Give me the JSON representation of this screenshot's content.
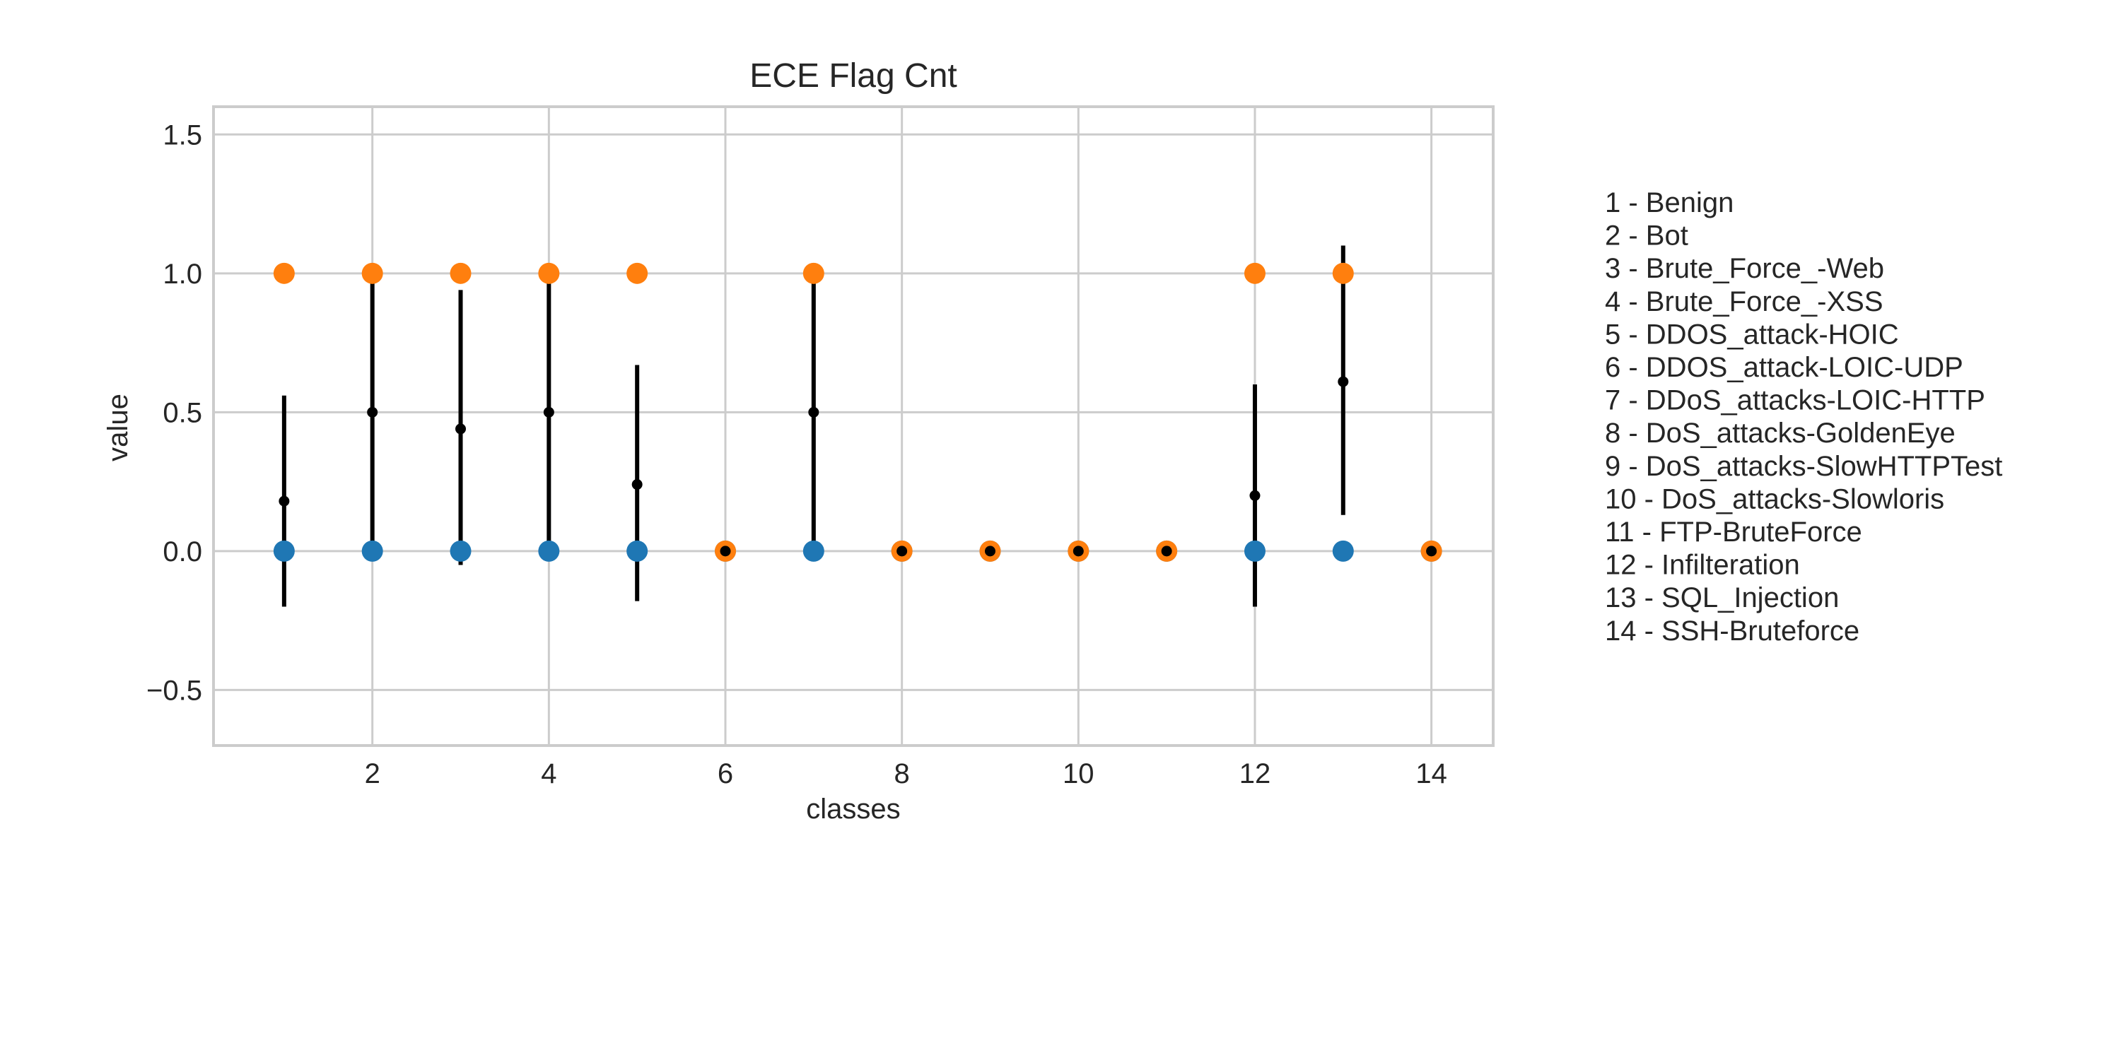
{
  "chart_data": {
    "type": "scatter",
    "title": "ECE Flag Cnt",
    "xlabel": "classes",
    "ylabel": "value",
    "xlim": [
      0.2,
      14.7
    ],
    "ylim": [
      -0.7,
      1.6
    ],
    "xticks": [
      2,
      4,
      6,
      8,
      10,
      12,
      14
    ],
    "yticks": [
      1.5,
      1.0,
      0.5,
      0.0,
      -0.5
    ],
    "ytick_labels": [
      "1.5",
      "1.0",
      "0.5",
      "0.0",
      "−0.5"
    ],
    "grid": true,
    "legend_placement": "right",
    "colors": {
      "min": "#1f77b4",
      "max": "#ff7f0e",
      "mean": "#000000"
    },
    "classes": [
      {
        "x": 1,
        "label": "1 - Benign",
        "min": 0,
        "max": 1,
        "mean": 0.18,
        "err_low": -0.2,
        "err_high": 0.56
      },
      {
        "x": 2,
        "label": "2 - Bot",
        "min": 0,
        "max": 1,
        "mean": 0.5,
        "err_low": 0.0,
        "err_high": 1.0
      },
      {
        "x": 3,
        "label": "3 - Brute_Force_-Web",
        "min": 0,
        "max": 1,
        "mean": 0.44,
        "err_low": -0.05,
        "err_high": 0.94
      },
      {
        "x": 4,
        "label": "4 - Brute_Force_-XSS",
        "min": 0,
        "max": 1,
        "mean": 0.5,
        "err_low": 0.0,
        "err_high": 0.99
      },
      {
        "x": 5,
        "label": "5 - DDOS_attack-HOIC",
        "min": 0,
        "max": 1,
        "mean": 0.24,
        "err_low": -0.18,
        "err_high": 0.67
      },
      {
        "x": 6,
        "label": "6 - DDOS_attack-LOIC-UDP",
        "min": 0,
        "max": 0,
        "mean": 0.0,
        "err_low": 0.0,
        "err_high": 0.0
      },
      {
        "x": 7,
        "label": "7 - DDoS_attacks-LOIC-HTTP",
        "min": 0,
        "max": 1,
        "mean": 0.5,
        "err_low": 0.0,
        "err_high": 1.0
      },
      {
        "x": 8,
        "label": "8 - DoS_attacks-GoldenEye",
        "min": 0,
        "max": 0,
        "mean": 0.0,
        "err_low": 0.0,
        "err_high": 0.0
      },
      {
        "x": 9,
        "label": "9 - DoS_attacks-SlowHTTPTest",
        "min": 0,
        "max": 0,
        "mean": 0.0,
        "err_low": 0.0,
        "err_high": 0.0
      },
      {
        "x": 10,
        "label": "10 - DoS_attacks-Slowloris",
        "min": 0,
        "max": 0,
        "mean": 0.0,
        "err_low": 0.0,
        "err_high": 0.0
      },
      {
        "x": 11,
        "label": "11 - FTP-BruteForce",
        "min": 0,
        "max": 0,
        "mean": 0.0,
        "err_low": 0.0,
        "err_high": 0.0
      },
      {
        "x": 12,
        "label": "12 - Infilteration",
        "min": 0,
        "max": 1,
        "mean": 0.2,
        "err_low": -0.2,
        "err_high": 0.6
      },
      {
        "x": 13,
        "label": "13 - SQL_Injection",
        "min": 0,
        "max": 1,
        "mean": 0.61,
        "err_low": 0.13,
        "err_high": 1.1
      },
      {
        "x": 14,
        "label": "14 - SSH-Bruteforce",
        "min": 0,
        "max": 0,
        "mean": 0.0,
        "err_low": 0.0,
        "err_high": 0.0
      }
    ]
  }
}
